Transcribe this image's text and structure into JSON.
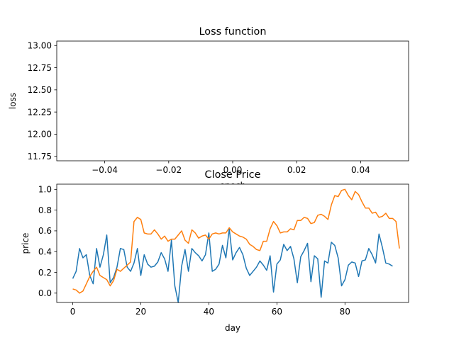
{
  "chart_data": [
    {
      "type": "line",
      "title": "Loss function",
      "xlabel": "epoch",
      "ylabel": "loss",
      "xlim": [
        -0.055,
        0.055
      ],
      "ylim": [
        11.7,
        13.05
      ],
      "xticks": [
        -0.04,
        -0.02,
        0.0,
        0.02,
        0.04
      ],
      "xtick_labels": [
        "−0.04",
        "−0.02",
        "0.00",
        "0.02",
        "0.04"
      ],
      "yticks": [
        11.75,
        12.0,
        12.25,
        12.5,
        12.75,
        13.0
      ],
      "ytick_labels": [
        "11.75",
        "12.00",
        "12.25",
        "12.50",
        "12.75",
        "13.00"
      ],
      "series": [],
      "grid": false
    },
    {
      "type": "line",
      "title": "Close Price",
      "xlabel": "day",
      "ylabel": "price",
      "xlim": [
        -4.7,
        98.7
      ],
      "ylim": [
        -0.09,
        1.05
      ],
      "xticks": [
        0,
        20,
        40,
        60,
        80
      ],
      "xtick_labels": [
        "0",
        "20",
        "40",
        "60",
        "80"
      ],
      "yticks": [
        0.0,
        0.2,
        0.4,
        0.6,
        0.8,
        1.0
      ],
      "ytick_labels": [
        "0.0",
        "0.2",
        "0.4",
        "0.6",
        "0.8",
        "1.0"
      ],
      "grid": false,
      "series": [
        {
          "color": "#1f77b4",
          "values": [
            0.14,
            0.21,
            0.43,
            0.34,
            0.37,
            0.17,
            0.09,
            0.43,
            0.25,
            0.37,
            0.56,
            0.1,
            0.15,
            0.25,
            0.43,
            0.42,
            0.25,
            0.21,
            0.29,
            0.43,
            0.17,
            0.37,
            0.28,
            0.25,
            0.26,
            0.3,
            0.39,
            0.33,
            0.21,
            0.51,
            0.07,
            -0.09,
            0.26,
            0.42,
            0.21,
            0.43,
            0.39,
            0.36,
            0.31,
            0.37,
            0.58,
            0.21,
            0.23,
            0.28,
            0.46,
            0.34,
            0.62,
            0.32,
            0.39,
            0.44,
            0.37,
            0.24,
            0.17,
            0.21,
            0.25,
            0.31,
            0.27,
            0.22,
            0.36,
            0.01,
            0.28,
            0.32,
            0.47,
            0.41,
            0.45,
            0.33,
            0.1,
            0.35,
            0.41,
            0.48,
            0.11,
            0.36,
            0.33,
            -0.04,
            0.31,
            0.29,
            0.49,
            0.46,
            0.34,
            0.07,
            0.13,
            0.27,
            0.3,
            0.29,
            0.16,
            0.31,
            0.32,
            0.43,
            0.37,
            0.29,
            0.57,
            0.44,
            0.29,
            0.28,
            0.26
          ]
        },
        {
          "color": "#ff7f0e",
          "values": [
            0.04,
            0.03,
            0.0,
            0.02,
            0.09,
            0.16,
            0.21,
            0.25,
            0.17,
            0.15,
            0.13,
            0.07,
            0.12,
            0.23,
            0.21,
            0.24,
            0.27,
            0.3,
            0.69,
            0.73,
            0.71,
            0.58,
            0.57,
            0.57,
            0.61,
            0.57,
            0.52,
            0.55,
            0.5,
            0.52,
            0.52,
            0.56,
            0.6,
            0.51,
            0.48,
            0.61,
            0.58,
            0.53,
            0.55,
            0.56,
            0.52,
            0.57,
            0.58,
            0.57,
            0.58,
            0.58,
            0.63,
            0.59,
            0.57,
            0.55,
            0.54,
            0.52,
            0.47,
            0.45,
            0.42,
            0.41,
            0.5,
            0.5,
            0.62,
            0.69,
            0.65,
            0.58,
            0.59,
            0.59,
            0.62,
            0.61,
            0.7,
            0.7,
            0.73,
            0.72,
            0.67,
            0.68,
            0.75,
            0.76,
            0.74,
            0.71,
            0.85,
            0.94,
            0.93,
            0.99,
            1.0,
            0.94,
            0.9,
            0.98,
            0.95,
            0.88,
            0.82,
            0.82,
            0.77,
            0.78,
            0.73,
            0.74,
            0.77,
            0.72,
            0.72,
            0.69,
            0.43
          ]
        }
      ]
    }
  ]
}
